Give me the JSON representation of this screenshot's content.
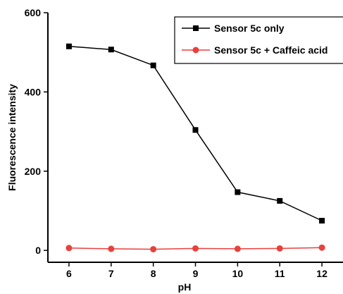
{
  "chart_data": {
    "type": "line",
    "xlabel": "pH",
    "ylabel": "Fluorescence intensity",
    "xlim": [
      5.5,
      12.5
    ],
    "ylim": [
      -30,
      600
    ],
    "xticks": [
      "6",
      "7",
      "8",
      "9",
      "10",
      "11",
      "12"
    ],
    "yticks": [
      "0",
      "200",
      "400",
      "600"
    ],
    "legend_position": "top-right",
    "grid": false,
    "x": [
      6,
      7,
      8,
      9,
      10,
      11,
      12
    ],
    "series": [
      {
        "name": "Sensor 5c only",
        "color": "#000000",
        "marker": "square",
        "values": [
          515,
          507,
          467,
          304,
          147,
          125,
          75
        ]
      },
      {
        "name": "Sensor 5c + Caffeic acid",
        "color": "#e8413d",
        "marker": "circle",
        "values": [
          6,
          4,
          3,
          5,
          4,
          5,
          7
        ]
      }
    ]
  }
}
